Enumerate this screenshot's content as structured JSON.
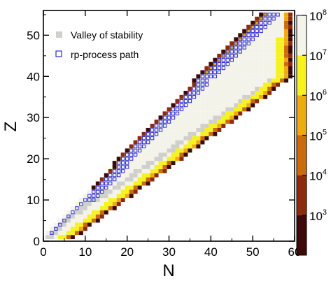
{
  "chart_data": {
    "type": "heatmap",
    "title": "",
    "xlabel": "N",
    "ylabel": "Z",
    "xlim": [
      0,
      60
    ],
    "ylim": [
      0,
      56
    ],
    "x_ticks": [
      "0",
      "10",
      "20",
      "30",
      "40",
      "50",
      "60"
    ],
    "y_ticks": [
      "0",
      "10",
      "20",
      "30",
      "40",
      "50"
    ],
    "legend": {
      "placement": "top-left",
      "entries": [
        {
          "label": "Valley of stability",
          "marker": "filled-square",
          "color": "#cfcfcc"
        },
        {
          "label": "rp-process path",
          "marker": "open-square",
          "color": "#2b2bd6"
        }
      ]
    },
    "colorbar": {
      "scale": "log",
      "labels": [
        {
          "base": "10",
          "exp": "3",
          "value": 1000
        },
        {
          "base": "10",
          "exp": "4",
          "value": 10000
        },
        {
          "base": "10",
          "exp": "5",
          "value": 100000
        },
        {
          "base": "10",
          "exp": "6",
          "value": 1000000
        },
        {
          "base": "10",
          "exp": "7",
          "value": 10000000
        },
        {
          "base": "10",
          "exp": "8",
          "value": 100000000
        }
      ],
      "bands": [
        {
          "from": 100,
          "to": 1000,
          "color": "#3d0a0a"
        },
        {
          "from": 1000,
          "to": 10000,
          "color": "#8e2a10"
        },
        {
          "from": 10000,
          "to": 100000,
          "color": "#cc6b0c"
        },
        {
          "from": 100000,
          "to": 1000000,
          "color": "#eeaa10"
        },
        {
          "from": 1000000,
          "to": 10000000,
          "color": "#f5f21f"
        },
        {
          "from": 10000000,
          "to": 100000000,
          "color": "#f4f3ea"
        }
      ]
    },
    "colors": {
      "stable": "#cfcfcc",
      "light": "#f4f3ea",
      "yellow": "#f5f21f",
      "orange": "#eeaa10",
      "dark_orange": "#cc6b0c",
      "brown": "#8e2a10",
      "dark_brown": "#3d0a0a",
      "rp_path": "#2b2bd6"
    }
  }
}
